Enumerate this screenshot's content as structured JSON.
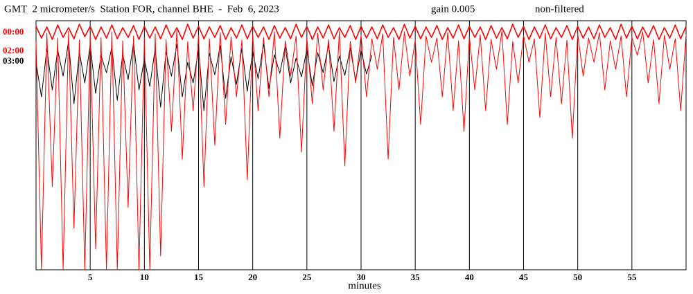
{
  "chart_data": {
    "type": "line",
    "title": "GMT  2 micrometer/s  Station FOR, channel BHE  -  Feb  6, 2023",
    "gain_label": "gain 0.005",
    "filter_label": "non-filtered",
    "x_label": "minutes",
    "xlim": [
      0,
      60
    ],
    "xticks": [
      5,
      10,
      15,
      20,
      25,
      30,
      35,
      40,
      45,
      50,
      55
    ],
    "ylim": [
      0,
      360
    ],
    "grid": true,
    "x": [
      0,
      0.5,
      1,
      1.5,
      2,
      2.5,
      3,
      3.5,
      4,
      4.5,
      5,
      5.5,
      6,
      6.5,
      7,
      7.5,
      8,
      8.5,
      9,
      9.5,
      10,
      10.5,
      11,
      11.5,
      12,
      12.5,
      13,
      13.5,
      14,
      14.5,
      15,
      15.5,
      16,
      16.5,
      17,
      17.5,
      18,
      18.5,
      19,
      19.5,
      20,
      20.5,
      21,
      21.5,
      22,
      22.5,
      23,
      23.5,
      24,
      24.5,
      25,
      25.5,
      26,
      26.5,
      27,
      27.5,
      28,
      28.5,
      29,
      29.5,
      30,
      30.5,
      31,
      31.5,
      32,
      32.5,
      33,
      33.5,
      34,
      34.5,
      35,
      35.5,
      36,
      36.5,
      37,
      37.5,
      38,
      38.5,
      39,
      39.5,
      40,
      40.5,
      41,
      41.5,
      42,
      42.5,
      43,
      43.5,
      44,
      44.5,
      45,
      45.5,
      46,
      46.5,
      47,
      47.5,
      48,
      48.5,
      49,
      49.5,
      50,
      50.5,
      51,
      51.5,
      52,
      52.5,
      53,
      53.5,
      54,
      54.5,
      55,
      55.5,
      56,
      56.5,
      57,
      57.5,
      58,
      58.5,
      59,
      59.5,
      60
    ],
    "series": [
      {
        "name": "00:00",
        "color": "#ff0000",
        "values": [
          352,
          335,
          351,
          333,
          354,
          336,
          350,
          334,
          355,
          337,
          352,
          333,
          351,
          335,
          354,
          334,
          350,
          336,
          353,
          333,
          352,
          335,
          351,
          334,
          354,
          336,
          350,
          333,
          355,
          335,
          352,
          334,
          351,
          336,
          353,
          333,
          350,
          335,
          354,
          334,
          352,
          336,
          351,
          333,
          353,
          335,
          350,
          334,
          355,
          336,
          352,
          333,
          351,
          335,
          354,
          334,
          350,
          336,
          353,
          333,
          352,
          335,
          351,
          334,
          354,
          336,
          350,
          333,
          355,
          335,
          352,
          334,
          351,
          336,
          353,
          333,
          350,
          335,
          354,
          334,
          352,
          336,
          351,
          333,
          353,
          335,
          350,
          334,
          355,
          336,
          352,
          333,
          351,
          335,
          354,
          334,
          350,
          336,
          353,
          333,
          352,
          335,
          351,
          334,
          354,
          336,
          350,
          333,
          355,
          335,
          352,
          334,
          351,
          336,
          353,
          333,
          350,
          335,
          354,
          334,
          352
        ]
      },
      {
        "name": "02:00",
        "color": "#ff0000",
        "values": [
          330,
          0,
          342,
          120,
          335,
          0,
          345,
          60,
          332,
          0,
          340,
          30,
          336,
          0,
          344,
          0,
          331,
          90,
          338,
          0,
          335,
          0,
          341,
          20,
          333,
          200,
          346,
          160,
          330,
          230,
          339,
          120,
          334,
          180,
          343,
          210,
          337,
          250,
          332,
          130,
          340,
          230,
          336,
          250,
          344,
          190,
          331,
          280,
          338,
          170,
          335,
          240,
          342,
          260,
          333,
          200,
          345,
          150,
          330,
          270,
          339,
          250,
          334,
          290,
          341,
          160,
          336,
          260,
          344,
          280,
          332,
          210,
          338,
          300,
          335,
          250,
          343,
          230,
          331,
          200,
          337,
          260,
          340,
          230,
          333,
          290,
          345,
          210,
          330,
          270,
          339,
          300,
          334,
          220,
          342,
          250,
          336,
          240,
          332,
          190,
          341,
          280,
          335,
          300,
          343,
          260,
          331,
          290,
          338,
          250,
          336,
          310,
          344,
          270,
          333,
          240,
          339,
          290,
          334,
          230,
          340
        ]
      },
      {
        "name": "03:00",
        "color": "#000000",
        "values": [
          300,
          250,
          320,
          260,
          318,
          280,
          330,
          240,
          315,
          270,
          325,
          255,
          310,
          285,
          322,
          245,
          312,
          275,
          328,
          260,
          305,
          265,
          320,
          235,
          315,
          280,
          326,
          250,
          300,
          270,
          318,
          230,
          313,
          282,
          324,
          248,
          308,
          268,
          320,
          258,
          316,
          276,
          327,
          262,
          311,
          284,
          323,
          270,
          306,
          279,
          319,
          266,
          314,
          285,
          325,
          272,
          309,
          281,
          321,
          274,
          317,
          283,
          310,
          null,
          null,
          null,
          null,
          null,
          null,
          null,
          null,
          null,
          null,
          null,
          null,
          null,
          null,
          null,
          null,
          null,
          null,
          null,
          null,
          null,
          null,
          null,
          null,
          null,
          null,
          null,
          null,
          null,
          null,
          null,
          null,
          null,
          null,
          null,
          null,
          null,
          null,
          null,
          null,
          null,
          null,
          null,
          null,
          null,
          null,
          null,
          null,
          null,
          null,
          null,
          null,
          null,
          null,
          null,
          null,
          null,
          null
        ]
      }
    ]
  }
}
